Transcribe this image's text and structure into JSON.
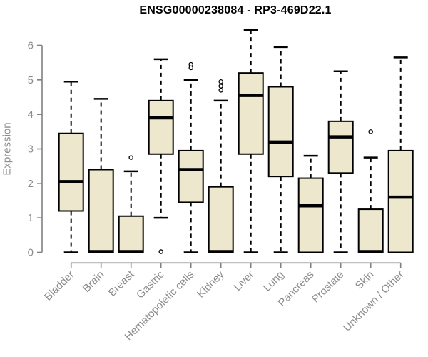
{
  "chart_data": {
    "type": "boxplot",
    "title": "ENSG00000238084 - RP3-469D22.1",
    "ylabel": "Expression",
    "xlabel": "",
    "ylim": [
      0,
      6.6
    ],
    "yticks": [
      0,
      1,
      2,
      3,
      4,
      5,
      6
    ],
    "grid": false,
    "legend": "none",
    "categories": [
      "Bladder",
      "Brain",
      "Breast",
      "Gastric",
      "Hematopoietic cells",
      "Kidney",
      "Liver",
      "Lung",
      "Pancreas",
      "Prostate",
      "Skin",
      "Unknown / Other"
    ],
    "series": [
      {
        "category": "Bladder",
        "min": 0,
        "q1": 1.2,
        "median": 2.05,
        "q3": 3.45,
        "max": 4.95,
        "outliers": []
      },
      {
        "category": "Brain",
        "min": 0,
        "q1": 0,
        "median": 0.02,
        "q3": 2.4,
        "max": 4.45,
        "outliers": []
      },
      {
        "category": "Breast",
        "min": 0,
        "q1": 0,
        "median": 0.02,
        "q3": 1.05,
        "max": 2.35,
        "outliers": [
          2.75
        ]
      },
      {
        "category": "Gastric",
        "min": 1.0,
        "q1": 2.85,
        "median": 3.9,
        "q3": 4.4,
        "max": 5.6,
        "outliers": [
          0.02
        ]
      },
      {
        "category": "Hematopoietic cells",
        "min": 0,
        "q1": 1.45,
        "median": 2.4,
        "q3": 2.95,
        "max": 5.0,
        "outliers": [
          5.45,
          5.35
        ]
      },
      {
        "category": "Kidney",
        "min": 0,
        "q1": 0,
        "median": 0.02,
        "q3": 1.9,
        "max": 4.4,
        "outliers": [
          4.95,
          4.82,
          4.7
        ]
      },
      {
        "category": "Liver",
        "min": 0,
        "q1": 2.85,
        "median": 4.55,
        "q3": 5.2,
        "max": 6.45,
        "outliers": []
      },
      {
        "category": "Lung",
        "min": 0,
        "q1": 2.2,
        "median": 3.2,
        "q3": 4.8,
        "max": 5.95,
        "outliers": []
      },
      {
        "category": "Pancreas",
        "min": 0,
        "q1": 0,
        "median": 1.35,
        "q3": 2.15,
        "max": 2.8,
        "outliers": []
      },
      {
        "category": "Prostate",
        "min": 0,
        "q1": 2.3,
        "median": 3.35,
        "q3": 3.8,
        "max": 5.25,
        "outliers": []
      },
      {
        "category": "Skin",
        "min": 0,
        "q1": 0,
        "median": 0.02,
        "q3": 1.25,
        "max": 2.75,
        "outliers": [
          3.5
        ]
      },
      {
        "category": "Unknown / Other",
        "min": 0,
        "q1": 0,
        "median": 1.6,
        "q3": 2.95,
        "max": 5.65,
        "outliers": []
      }
    ],
    "colors": {
      "box_fill": "#ece7cd",
      "box_border": "#000000",
      "median": "#000000",
      "whisker": "#000000",
      "outlier_stroke": "#000000",
      "outlier_fill": "#ffffff",
      "axis": "#808080",
      "tick_label": "#8c8c8c",
      "title": "#000000",
      "background": "#ffffff"
    }
  }
}
